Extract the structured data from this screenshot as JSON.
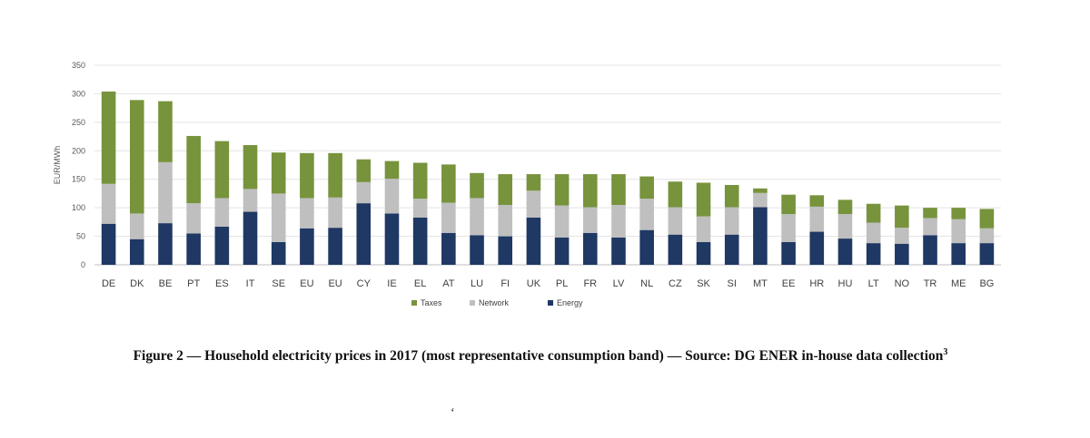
{
  "chart_data": {
    "type": "bar",
    "stacked": true,
    "ylabel": "EUR/MWh",
    "ylim": [
      0,
      350
    ],
    "yticks": [
      0,
      50,
      100,
      150,
      200,
      250,
      300,
      350
    ],
    "grid": true,
    "legend_position": "bottom",
    "categories": [
      "DE",
      "DK",
      "BE",
      "PT",
      "ES",
      "IT",
      "SE",
      "EU",
      "EU",
      "CY",
      "IE",
      "EL",
      "AT",
      "LU",
      "FI",
      "UK",
      "PL",
      "FR",
      "LV",
      "NL",
      "CZ",
      "SK",
      "SI",
      "MT",
      "EE",
      "HR",
      "HU",
      "LT",
      "NO",
      "TR",
      "ME",
      "BG"
    ],
    "series": [
      {
        "name": "Energy",
        "color": "#1f3864",
        "values": [
          72,
          45,
          73,
          55,
          67,
          93,
          40,
          64,
          65,
          108,
          90,
          83,
          56,
          52,
          50,
          83,
          48,
          56,
          48,
          61,
          53,
          40,
          53,
          101,
          40,
          58,
          46,
          38,
          37,
          52,
          38,
          38
        ]
      },
      {
        "name": "Network",
        "color": "#bfbfbf",
        "values": [
          70,
          45,
          107,
          53,
          50,
          40,
          85,
          53,
          53,
          37,
          61,
          33,
          53,
          65,
          55,
          47,
          56,
          45,
          57,
          55,
          48,
          45,
          48,
          25,
          49,
          44,
          43,
          36,
          28,
          30,
          42,
          26
        ]
      },
      {
        "name": "Taxes",
        "color": "#77933c",
        "values": [
          162,
          199,
          107,
          118,
          100,
          77,
          72,
          79,
          78,
          40,
          31,
          63,
          67,
          44,
          54,
          29,
          55,
          58,
          54,
          39,
          45,
          59,
          39,
          8,
          34,
          20,
          25,
          33,
          39,
          18,
          20,
          34
        ]
      }
    ],
    "legend_order": [
      "Taxes",
      "Network",
      "Energy"
    ]
  },
  "caption": {
    "text": "Figure 2 — Household electricity prices in 2017 (most representative consumption band) — Source: DG ENER in-house data collection",
    "footnote_marker": "3"
  },
  "stray_mark": "ʻ"
}
